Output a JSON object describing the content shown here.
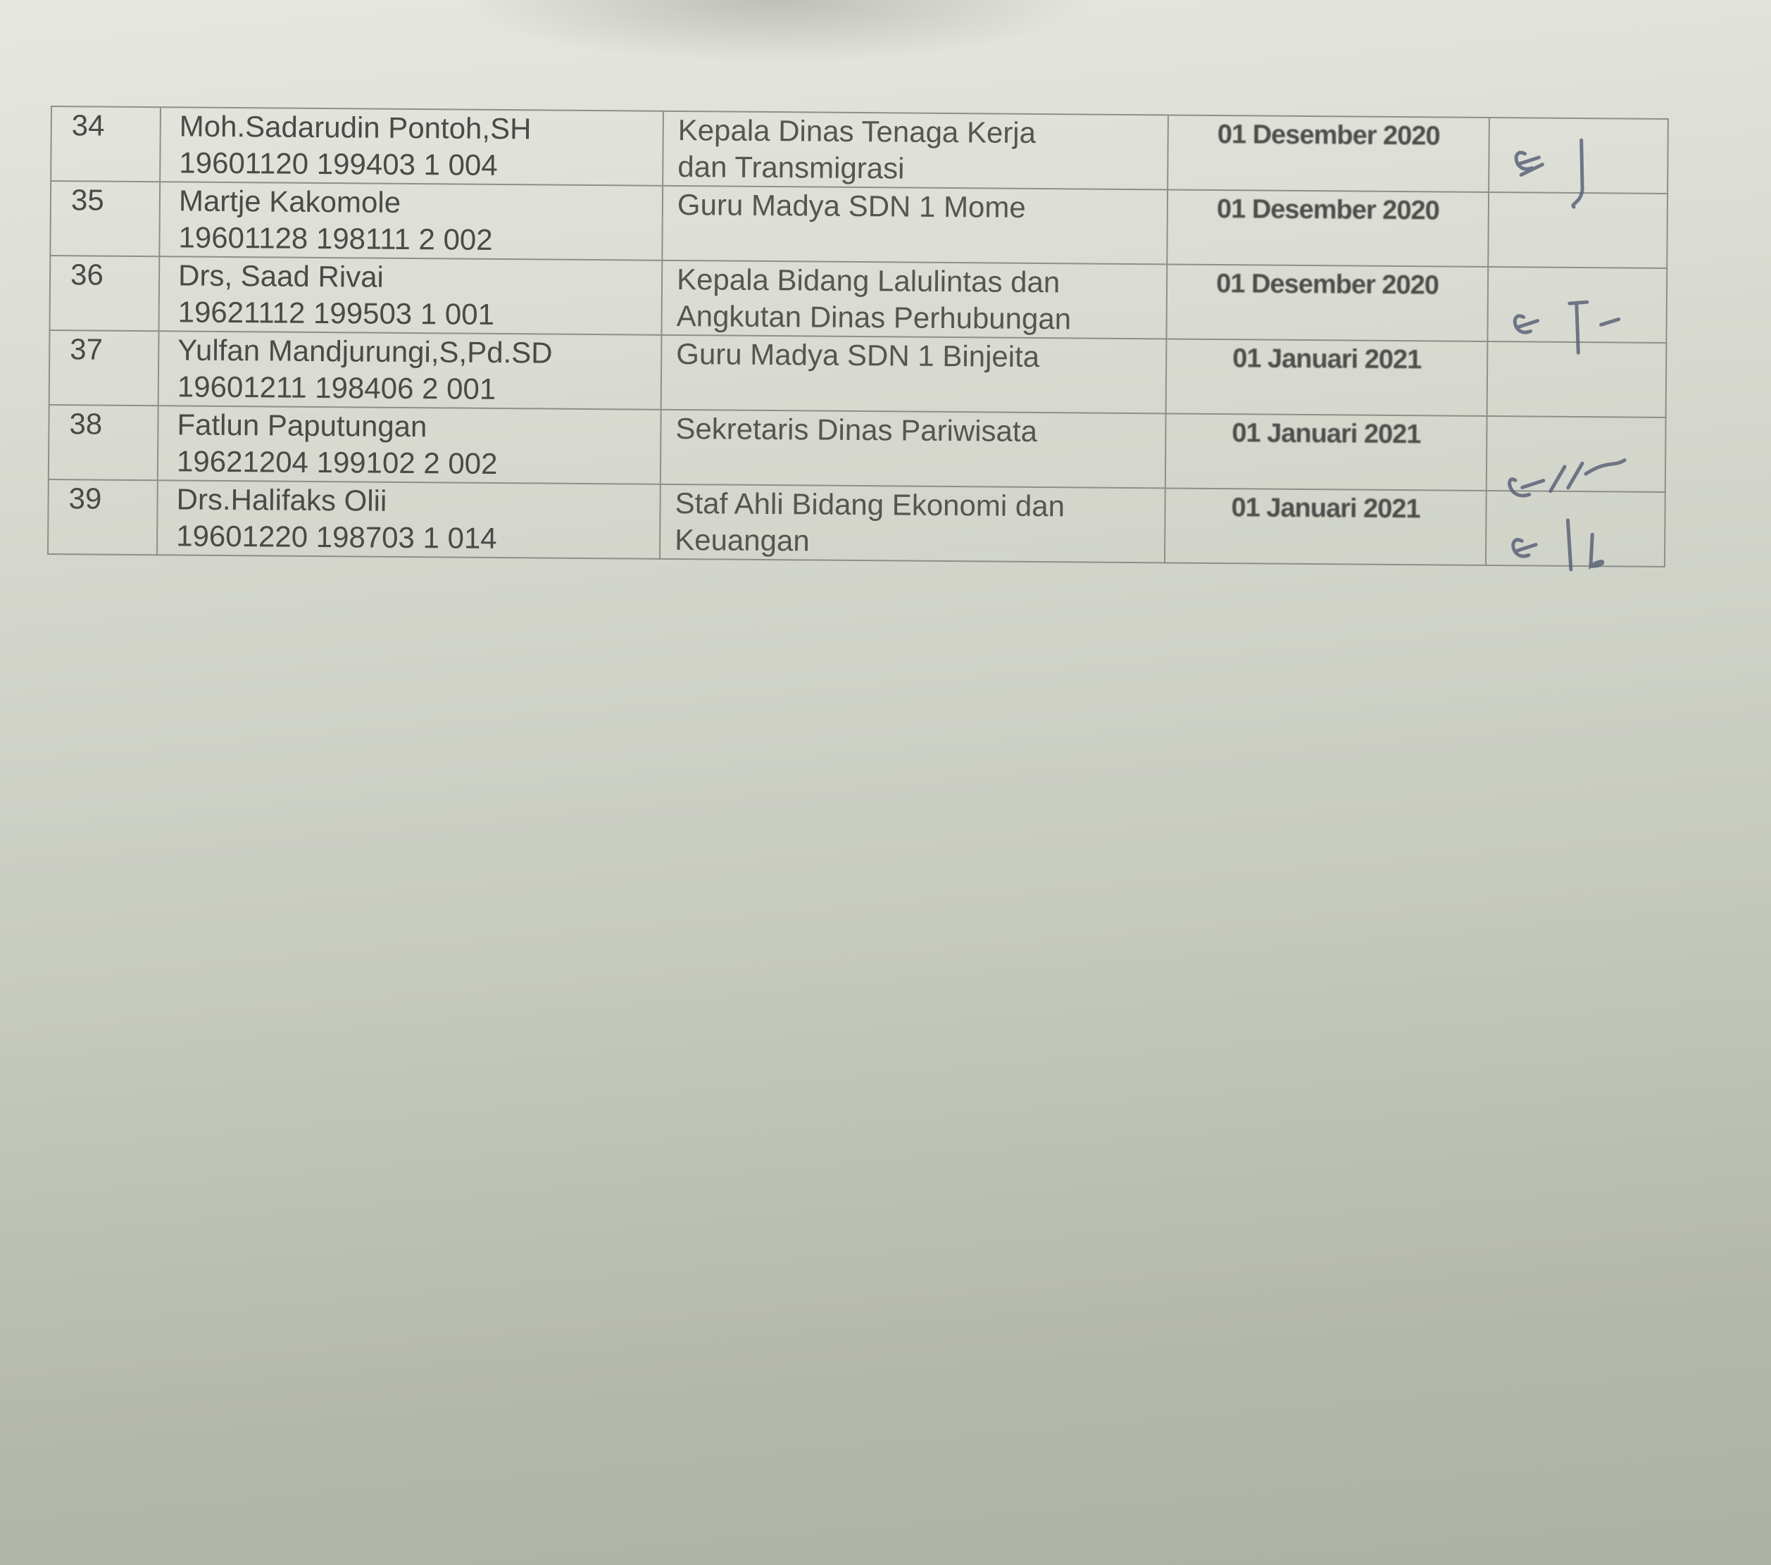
{
  "table": {
    "rows": [
      {
        "no": "34",
        "name": "Moh.Sadarudin Pontoh,SH",
        "nip": "19601120 199403 1 004",
        "position_line1": "Kepala Dinas Tenaga Kerja",
        "position_line2": "dan Transmigrasi",
        "date": "01 Desember 2020",
        "signed": true
      },
      {
        "no": "35",
        "name": "Martje Kakomole",
        "nip": "19601128 198111 2 002",
        "position_line1": "Guru Madya SDN 1 Mome",
        "position_line2": "",
        "date": "01 Desember 2020",
        "signed": false
      },
      {
        "no": "36",
        "name": "Drs, Saad Rivai",
        "nip": "19621112 199503 1 001",
        "position_line1": "Kepala Bidang Lalulintas dan",
        "position_line2": "Angkutan Dinas Perhubungan",
        "date": "01 Desember 2020",
        "signed": true
      },
      {
        "no": "37",
        "name": "Yulfan Mandjurungi,S,Pd.SD",
        "nip": "19601211 198406 2 001",
        "position_line1": "Guru Madya SDN 1 Binjeita",
        "position_line2": "",
        "date": "01 Januari 2021",
        "signed": false
      },
      {
        "no": "38",
        "name": "Fatlun Paputungan",
        "nip": "19621204 199102 2 002",
        "position_line1": "Sekretaris Dinas Pariwisata",
        "position_line2": "",
        "date": "01 Januari 2021",
        "signed": true
      },
      {
        "no": "39",
        "name": "Drs.Halifaks Olii",
        "nip": "19601220 198703 1 014",
        "position_line1": "Staf Ahli Bidang Ekonomi dan",
        "position_line2": "Keuangan",
        "date": "01 Januari 2021",
        "signed": true
      }
    ]
  },
  "colors": {
    "ink": "#4a4a48",
    "signature_ink": "#5a6378",
    "paper": "#d9dbd2"
  }
}
